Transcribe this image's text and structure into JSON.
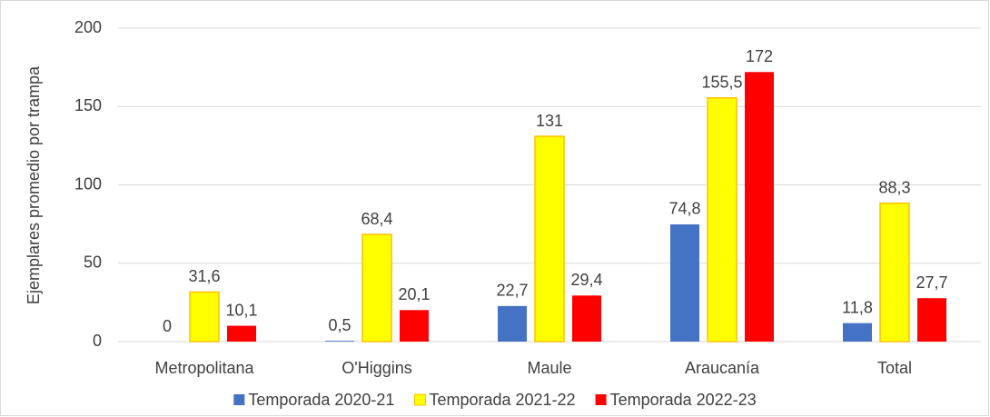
{
  "chart_data": {
    "type": "bar",
    "y_label": "Ejemplares promedio por trampa",
    "categories": [
      "Metropolitana",
      "O'Higgins",
      "Maule",
      "Araucanía",
      "Total"
    ],
    "series": [
      {
        "name": "Temporada 2020-21",
        "color": "#4472c4",
        "values": [
          0,
          0.5,
          22.7,
          74.8,
          11.8
        ],
        "value_labels": [
          "0",
          "0,5",
          "22,7",
          "74,8",
          "11,8"
        ]
      },
      {
        "name": "Temporada 2021-22",
        "color": "#ffff00",
        "edgecolor": "#ffc000",
        "values": [
          31.6,
          68.4,
          131,
          155.5,
          88.3
        ],
        "value_labels": [
          "31,6",
          "68,4",
          "131",
          "155,5",
          "88,3"
        ]
      },
      {
        "name": "Temporada 2022-23",
        "color": "#ff0000",
        "values": [
          10.1,
          20.1,
          29.4,
          172,
          27.7
        ],
        "value_labels": [
          "10,1",
          "20,1",
          "29,4",
          "172",
          "27,7"
        ]
      }
    ],
    "ylim": [
      0,
      200
    ],
    "yticks": [
      0,
      50,
      100,
      150,
      200
    ],
    "grid": true,
    "legend": "bottom"
  }
}
